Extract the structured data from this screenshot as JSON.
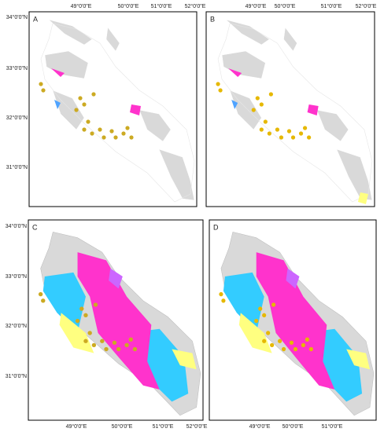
{
  "panels": [
    {
      "label": "A",
      "lon_labels": [
        "49°0'0\"E",
        "50°0'0\"E",
        "51°0'0\"E",
        "52°0'0\"E"
      ],
      "lat_labels": [
        "34°0'0\"N",
        "33°0'0\"N",
        "32°0'0\"N",
        "31°0'0\"N"
      ]
    },
    {
      "label": "B",
      "lon_labels": [
        "49°0'0\"E",
        "50°0'0\"E",
        "51°0'0\"E",
        "52°0'0\"E"
      ]
    },
    {
      "label": "C",
      "lon_labels": [
        "49°0'0\"E",
        "50°0'0\"E",
        "51°0'0\"E",
        "52°0'0\"E"
      ],
      "lat_labels": [
        "34°0'0\"N",
        "33°0'0\"N",
        "32°0'0\"N",
        "31°0'0\"N"
      ]
    },
    {
      "label": "D",
      "lon_labels": [
        "49°0'0\"E",
        "50°0'0\"E",
        "51°0'0\"E"
      ]
    }
  ]
}
